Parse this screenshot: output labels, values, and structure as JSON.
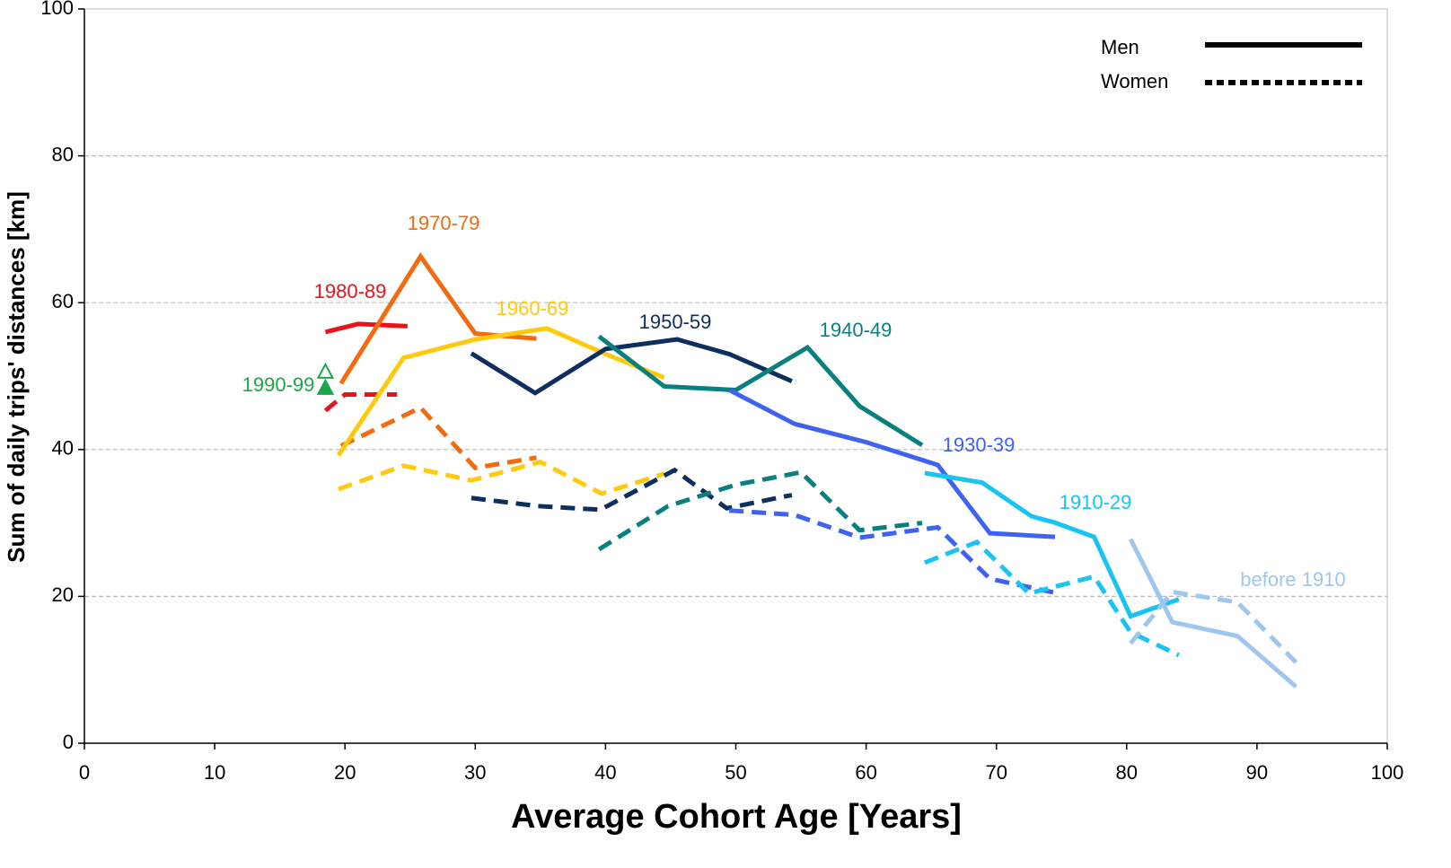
{
  "chart_data": {
    "type": "line",
    "xlabel": "Average Cohort Age [Years]",
    "ylabel": "Sum of daily trips' distances  [km]",
    "xlim": [
      0,
      100
    ],
    "xticks": [
      0,
      10,
      20,
      30,
      40,
      50,
      60,
      70,
      80,
      90,
      100
    ],
    "ylim": [
      0,
      100
    ],
    "yticks": [
      0,
      20,
      40,
      60,
      80,
      100
    ],
    "grid": true,
    "legend_position": "upper right",
    "legend": [
      {
        "label": "Men",
        "style": "solid"
      },
      {
        "label": "Women",
        "style": "dotted"
      }
    ],
    "series": [
      {
        "name": "1990-99",
        "color": "#1aa64a",
        "marker": "triangle",
        "men": {
          "x": [
            18.5
          ],
          "values": [
            50.5
          ]
        },
        "women": {
          "x": [
            18.5
          ],
          "values": [
            48.3
          ]
        }
      },
      {
        "name": "1980-89",
        "color": "#e8141c",
        "men": {
          "x": [
            18.5,
            21,
            24.8
          ],
          "values": [
            56,
            57.1,
            56.8
          ]
        },
        "women": {
          "x": [
            18.5,
            20,
            24
          ],
          "values": [
            45.3,
            47.5,
            47.5
          ]
        }
      },
      {
        "name": "1970-79",
        "color": "#f26b10",
        "men": {
          "x": [
            19.7,
            25.8,
            30,
            34.7
          ],
          "values": [
            49,
            66.3,
            55.8,
            55.1
          ]
        },
        "women": {
          "x": [
            19.7,
            25.8,
            30,
            34.7
          ],
          "values": [
            40.5,
            45.7,
            37.5,
            38.9
          ]
        }
      },
      {
        "name": "1960-69",
        "color": "#ffc90e",
        "men": {
          "x": [
            19.5,
            24.5,
            30,
            35.5,
            40,
            44.5
          ],
          "values": [
            39.2,
            52.5,
            55,
            56.5,
            53,
            49.8
          ]
        },
        "women": {
          "x": [
            19.5,
            24.5,
            29.7,
            35,
            39.7,
            44.5
          ],
          "values": [
            34.6,
            37.8,
            35.8,
            38.3,
            34,
            36.7
          ]
        }
      },
      {
        "name": "1950-59",
        "color": "#0d2e5e",
        "men": {
          "x": [
            29.7,
            34.6,
            40,
            45.5,
            49.5,
            54.3
          ],
          "values": [
            53.1,
            47.7,
            53.7,
            55,
            53,
            49.3
          ]
        },
        "women": {
          "x": [
            29.7,
            34.8,
            39.6,
            45.3,
            49.3,
            54.3
          ],
          "values": [
            33.4,
            32.3,
            31.8,
            37.2,
            32,
            33.8
          ]
        }
      },
      {
        "name": "1940-49",
        "color": "#0a7f7f",
        "men": {
          "x": [
            39.5,
            44.5,
            50,
            55.5,
            59.5,
            64.3
          ],
          "values": [
            55.4,
            48.6,
            48.1,
            53.9,
            45.9,
            40.6
          ]
        },
        "women": {
          "x": [
            39.5,
            44.8,
            50,
            55,
            59.5,
            64.3
          ],
          "values": [
            26.4,
            32.3,
            35.2,
            36.9,
            29,
            30
          ]
        }
      },
      {
        "name": "1930-39",
        "color": "#3f63f0",
        "men": {
          "x": [
            49.5,
            54.5,
            60,
            65.5,
            69.5,
            74.5
          ],
          "values": [
            48.1,
            43.5,
            41,
            37.9,
            28.6,
            28.1
          ]
        },
        "women": {
          "x": [
            49.5,
            54.5,
            59.5,
            65.5,
            69.5,
            74.5
          ],
          "values": [
            31.7,
            31.1,
            28,
            29.4,
            22.4,
            20.5
          ]
        }
      },
      {
        "name": "1910-29",
        "color": "#19c3f2",
        "men": {
          "x": [
            64.5,
            68.9,
            72.7,
            74.4,
            77.5,
            80.3,
            84
          ],
          "values": [
            36.8,
            35.5,
            30.9,
            30.1,
            28.1,
            17.3,
            19.6
          ]
        },
        "women": {
          "x": [
            64.5,
            68.5,
            72.5,
            77.5,
            80.3,
            84
          ],
          "values": [
            24.6,
            27.4,
            20.4,
            22.7,
            15.1,
            12
          ]
        }
      },
      {
        "name": "before 1910",
        "color": "#9ec6ee",
        "men": {
          "x": [
            80.3,
            83.5,
            88.5,
            93
          ],
          "values": [
            27.8,
            16.5,
            14.6,
            7.7
          ]
        },
        "women": {
          "x": [
            80.3,
            83.5,
            88.5,
            93
          ],
          "values": [
            13.6,
            20.6,
            19.2,
            11
          ]
        }
      }
    ]
  }
}
